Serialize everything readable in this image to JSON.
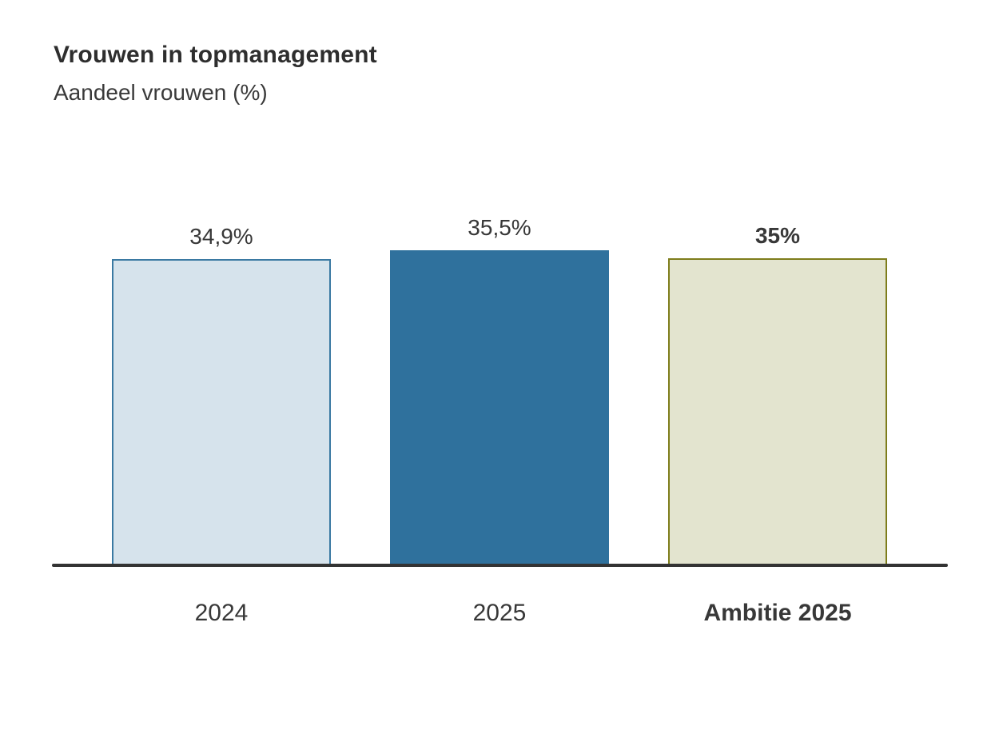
{
  "chart_data": {
    "type": "bar",
    "title": "Vrouwen in topmanagement",
    "subtitle": "Aandeel vrouwen (%)",
    "categories": [
      "2024",
      "2025",
      "Ambitie 2025"
    ],
    "values": [
      34.9,
      35.5,
      35
    ],
    "value_labels": [
      "34,9%",
      "35,5%",
      "35%"
    ],
    "xlabel": "",
    "ylabel": "Aandeel vrouwen (%)",
    "ylim": [
      14,
      36.5
    ],
    "grid": false,
    "legend": false,
    "axis_color": "#333333",
    "text_color": "#383838",
    "bar_styles": [
      {
        "fill": "#D6E3EC",
        "border": "#3A79A2",
        "emphasis": false
      },
      {
        "fill": "#2F719D",
        "border": "#2F719D",
        "emphasis": false
      },
      {
        "fill": "#E3E4CF",
        "border": "#7E7D1B",
        "emphasis": true
      }
    ]
  }
}
